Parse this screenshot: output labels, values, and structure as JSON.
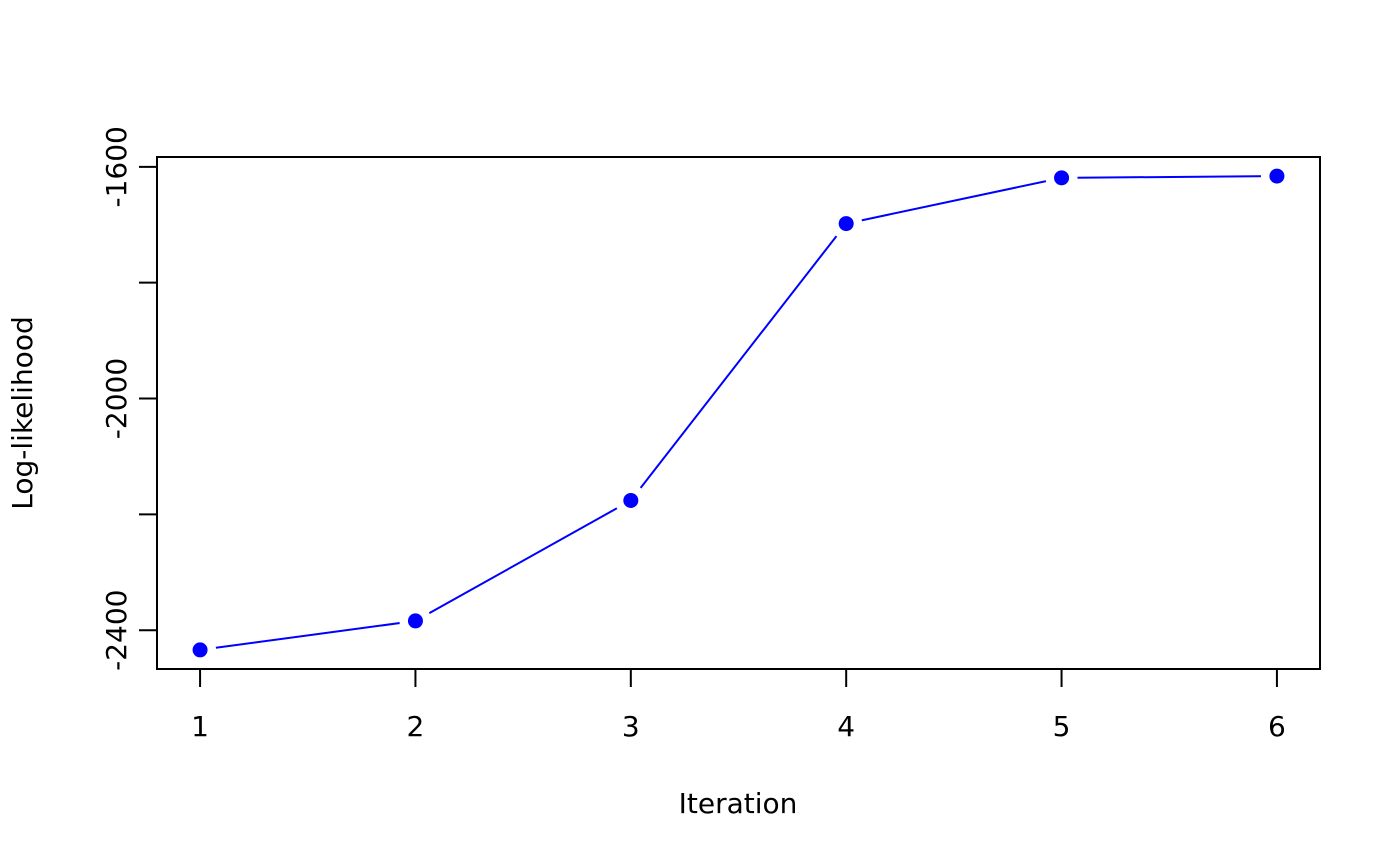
{
  "chart_data": {
    "type": "line",
    "x_label": "Iteration",
    "y_label": "Log-likelihood",
    "x": [
      1,
      2,
      3,
      4,
      5,
      6
    ],
    "series": [
      {
        "color": "#0000ff",
        "values": [
          -2434,
          -2384,
          -2176,
          -1698,
          -1619,
          -1616
        ]
      }
    ],
    "xlim": [
      0.8,
      6.2
    ],
    "xticks": [
      1,
      2,
      3,
      4,
      5,
      6
    ],
    "ylim": [
      -2467,
      -1583
    ],
    "yticks": [
      -2400,
      -2000,
      -1600
    ],
    "yminor_ticks": [
      -2200,
      -1800
    ]
  }
}
